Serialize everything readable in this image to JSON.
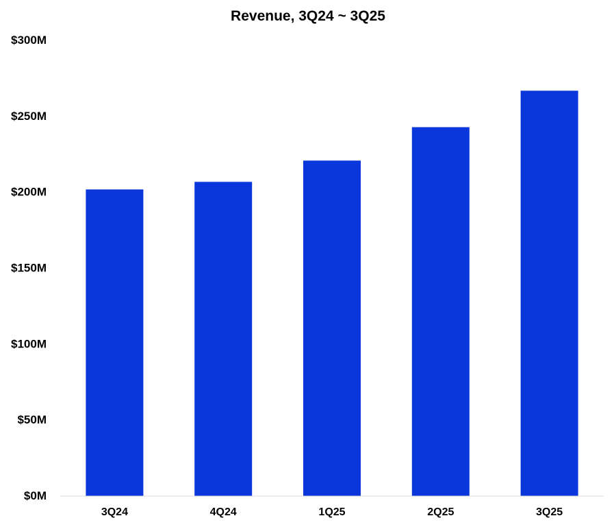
{
  "chart_data": {
    "type": "bar",
    "title": "Revenue, 3Q24 ~ 3Q25",
    "xlabel": "",
    "ylabel": "",
    "categories": [
      "3Q24",
      "4Q24",
      "1Q25",
      "2Q25",
      "3Q25"
    ],
    "series": [
      {
        "name": "Revenue",
        "values": [
          201,
          206,
          220,
          242,
          266
        ],
        "color": "#0a37dc"
      }
    ],
    "unit": "$M",
    "ylim": [
      0,
      300
    ],
    "yticks": [
      0,
      50,
      100,
      150,
      200,
      250,
      300
    ],
    "ytick_labels": [
      "$0M",
      "$50M",
      "$100M",
      "$150M",
      "$200M",
      "$250M",
      "$300M"
    ],
    "grid": false,
    "legend": "none"
  }
}
